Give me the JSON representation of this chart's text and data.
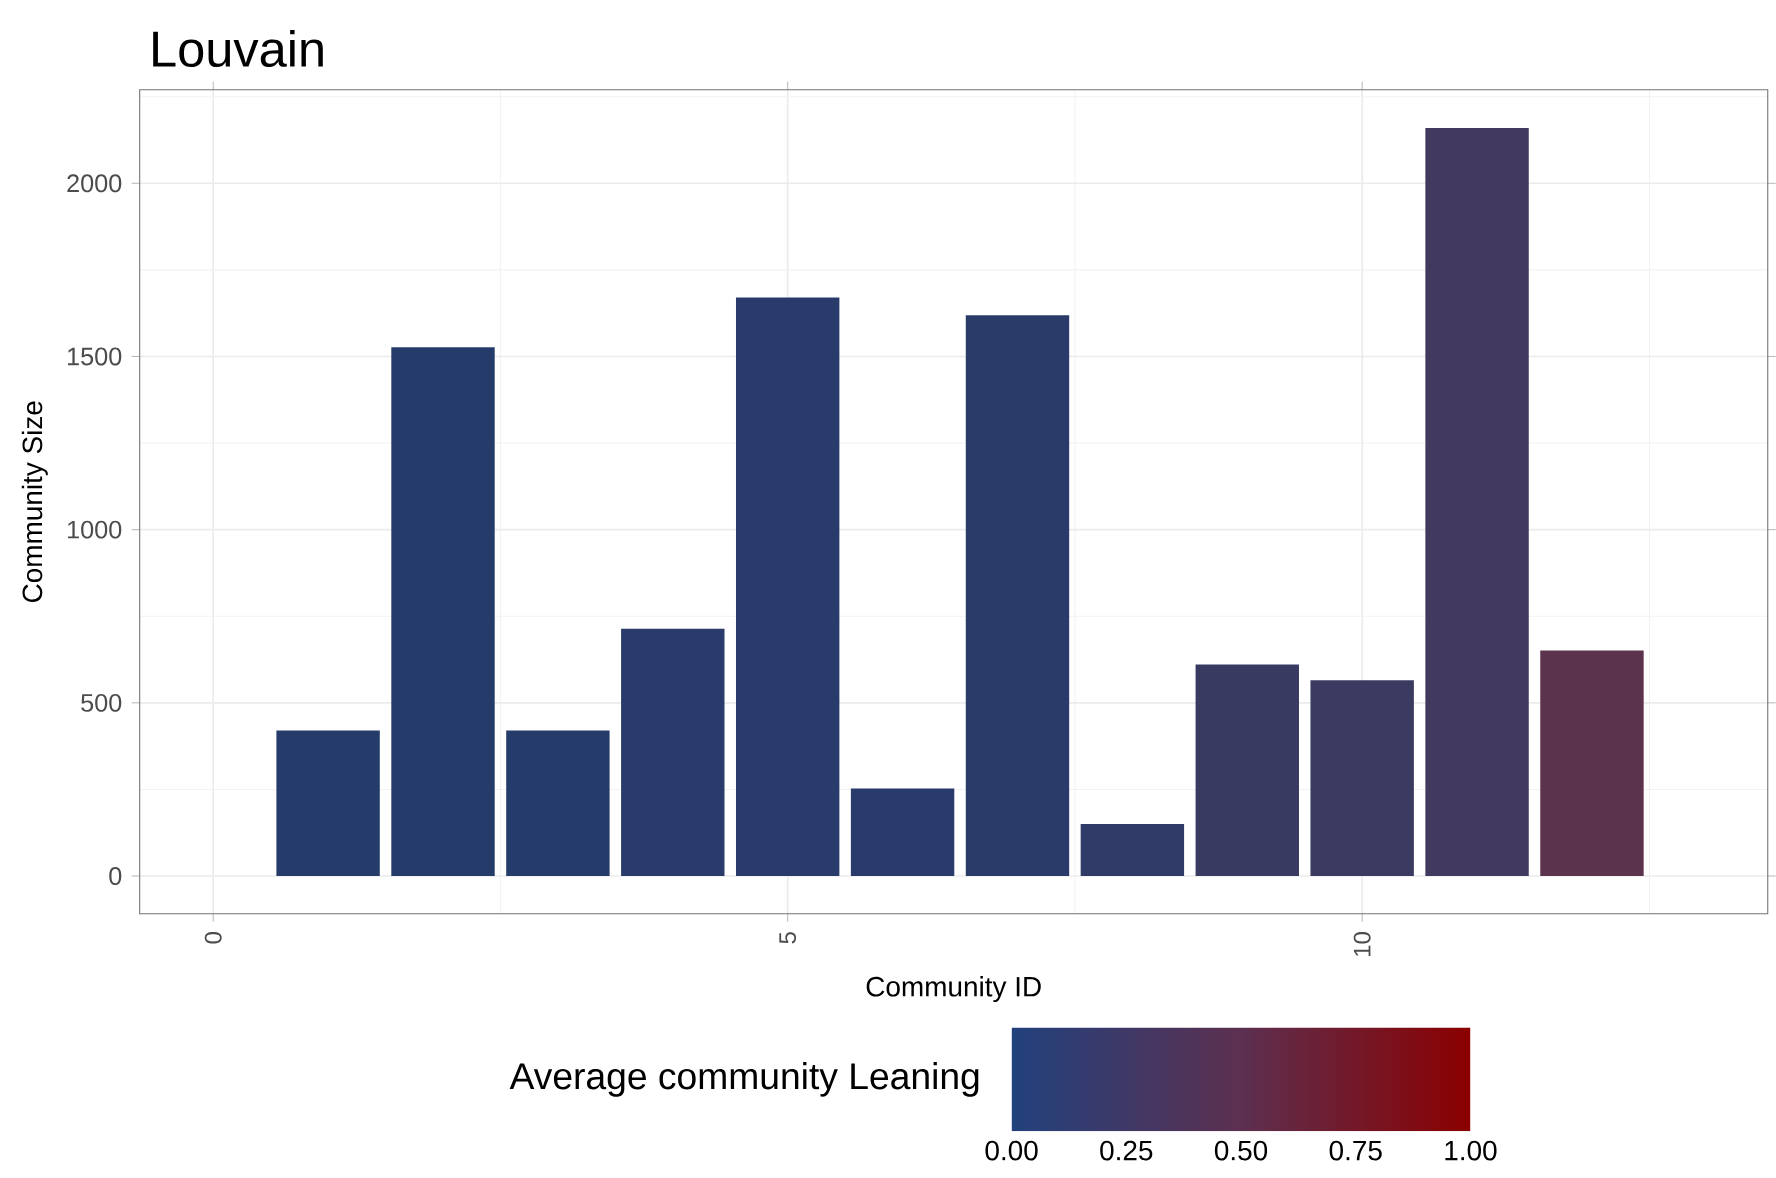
{
  "chart_data": {
    "type": "bar",
    "title": "Louvain",
    "xlabel": "Community ID",
    "ylabel": "Community Size",
    "clabel": "Average community Leaning",
    "x": [
      1,
      2,
      3,
      4,
      5,
      6,
      7,
      8,
      9,
      10,
      11,
      12
    ],
    "values": [
      420,
      1527,
      420,
      714,
      1670,
      253,
      1619,
      150,
      611,
      565,
      2160,
      651
    ],
    "colors": [
      "#253c6b",
      "#253c6b",
      "#253c6b",
      "#283b6a",
      "#293b6a",
      "#293b6a",
      "#2b3b69",
      "#303a66",
      "#383a62",
      "#3b3a61",
      "#41395e",
      "#5c334d"
    ],
    "xlim": [
      -0.64,
      13.53
    ],
    "ylim": [
      -109,
      2270
    ],
    "xticks": [
      0,
      5,
      10
    ],
    "yticks": [
      0,
      500,
      1000,
      1500,
      2000
    ],
    "clim": [
      0,
      1
    ],
    "cticks": [
      {
        "value": 0,
        "label": "0.00"
      },
      {
        "value": 0.25,
        "label": "0.25"
      },
      {
        "value": 0.5,
        "label": "0.50"
      },
      {
        "value": 0.75,
        "label": "0.75"
      },
      {
        "value": 1,
        "label": "1.00"
      }
    ],
    "grid": true
  }
}
